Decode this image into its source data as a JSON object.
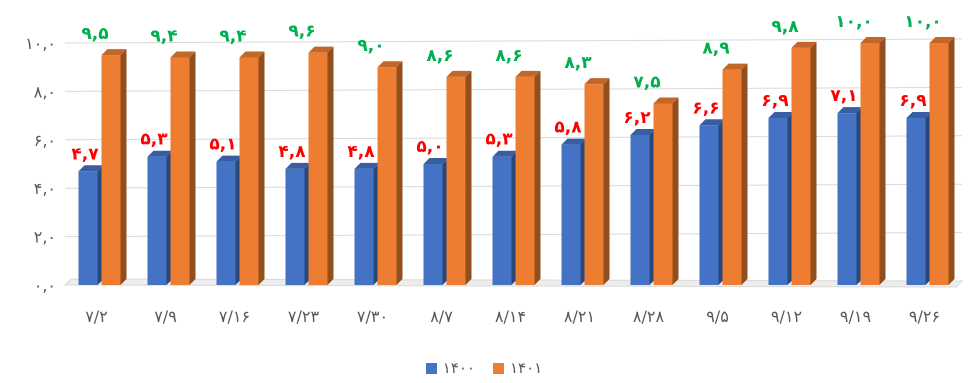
{
  "chart_data": {
    "type": "bar",
    "categories": [
      "۷/۲",
      "۷/۹",
      "۷/۱۶",
      "۷/۲۳",
      "۷/۳۰",
      "۸/۷",
      "۸/۱۴",
      "۸/۲۱",
      "۸/۲۸",
      "۹/۵",
      "۹/۱۲",
      "۹/۱۹",
      "۹/۲۶"
    ],
    "series": [
      {
        "name": "۱۴۰۰",
        "color": "#4472C4",
        "label_color": "#FF0000",
        "values": [
          4.7,
          5.3,
          5.1,
          4.8,
          4.8,
          5.0,
          5.3,
          5.8,
          6.2,
          6.6,
          6.9,
          7.1,
          6.9
        ],
        "labels": [
          "۴,۷",
          "۵,۳",
          "۵,۱",
          "۴,۸",
          "۴,۸",
          "۵,۰",
          "۵,۳",
          "۵,۸",
          "۶,۲",
          "۶,۶",
          "۶,۹",
          "۷,۱",
          "۶,۹"
        ]
      },
      {
        "name": "۱۴۰۱",
        "color": "#ED7D31",
        "label_color": "#00B050",
        "values": [
          9.5,
          9.4,
          9.4,
          9.6,
          9.0,
          8.6,
          8.6,
          8.3,
          7.5,
          8.9,
          9.8,
          10.0,
          10.0
        ],
        "labels": [
          "۹,۵",
          "۹,۴",
          "۹,۴",
          "۹,۶",
          "۹,۰",
          "۸,۶",
          "۸,۶",
          "۸,۳",
          "۷,۵",
          "۸,۹",
          "۹,۸",
          "۱۰,۰",
          "۱۰,۰"
        ]
      }
    ],
    "y_ticks": [
      0,
      2,
      4,
      6,
      8,
      10
    ],
    "y_tick_labels": [
      "۰,۰",
      "۲,۰",
      "۴,۰",
      "۶,۰",
      "۸,۰",
      "۱۰,۰"
    ],
    "ylim": [
      0,
      10
    ],
    "grid": true,
    "legend": "bottom-center",
    "style": "3d-clustered-column",
    "title": "",
    "xlabel": "",
    "ylabel": ""
  }
}
